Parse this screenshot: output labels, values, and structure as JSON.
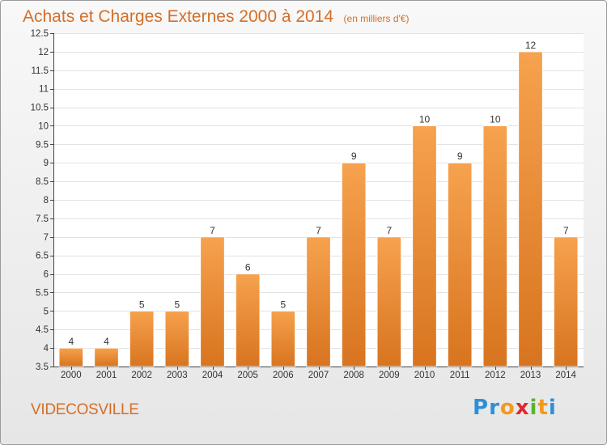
{
  "header": {
    "title": "Achats et Charges Externes 2000 à 2014",
    "unit": "(en milliers d'€)"
  },
  "footer": {
    "commune": "VIDECOSVILLE",
    "logo_letters": [
      "P",
      "r",
      "o",
      "x",
      "i",
      "t",
      "i"
    ],
    "logo_colors": [
      "#2f8fd6",
      "#2f8fd6",
      "#f39a1d",
      "#e02a2a",
      "#59b42f",
      "#f39a1d",
      "#2f8fd6"
    ]
  },
  "colors": {
    "bar_light": "#f6a24e",
    "bar_dark": "#d8741f",
    "title": "#d56e26"
  },
  "chart_data": {
    "type": "bar",
    "categories": [
      "2000",
      "2001",
      "2002",
      "2003",
      "2004",
      "2005",
      "2006",
      "2007",
      "2008",
      "2009",
      "2010",
      "2011",
      "2012",
      "2013",
      "2014"
    ],
    "values": [
      4,
      4,
      5,
      5,
      7,
      6,
      5,
      7,
      9,
      7,
      10,
      9,
      10,
      12,
      7
    ],
    "value_labels": [
      "4",
      "4",
      "5",
      "5",
      "7",
      "6",
      "5",
      "7",
      "9",
      "7",
      "10",
      "9",
      "10",
      "12",
      "7"
    ],
    "ylim": [
      3.5,
      12.5
    ],
    "yticks": [
      3.5,
      4,
      4.5,
      5,
      5.5,
      6,
      6.5,
      7,
      7.5,
      8,
      8.5,
      9,
      9.5,
      10,
      10.5,
      11,
      11.5,
      12,
      12.5
    ],
    "ytick_labels": [
      "3.5",
      "4",
      "4.5",
      "5",
      "5.5",
      "6",
      "6.5",
      "7",
      "7.5",
      "8",
      "8.5",
      "9",
      "9.5",
      "10",
      "10.5",
      "11",
      "11.5",
      "12",
      "12.5"
    ],
    "grid": true,
    "title": "Achats et Charges Externes 2000 à 2014",
    "xlabel": "",
    "ylabel": ""
  }
}
